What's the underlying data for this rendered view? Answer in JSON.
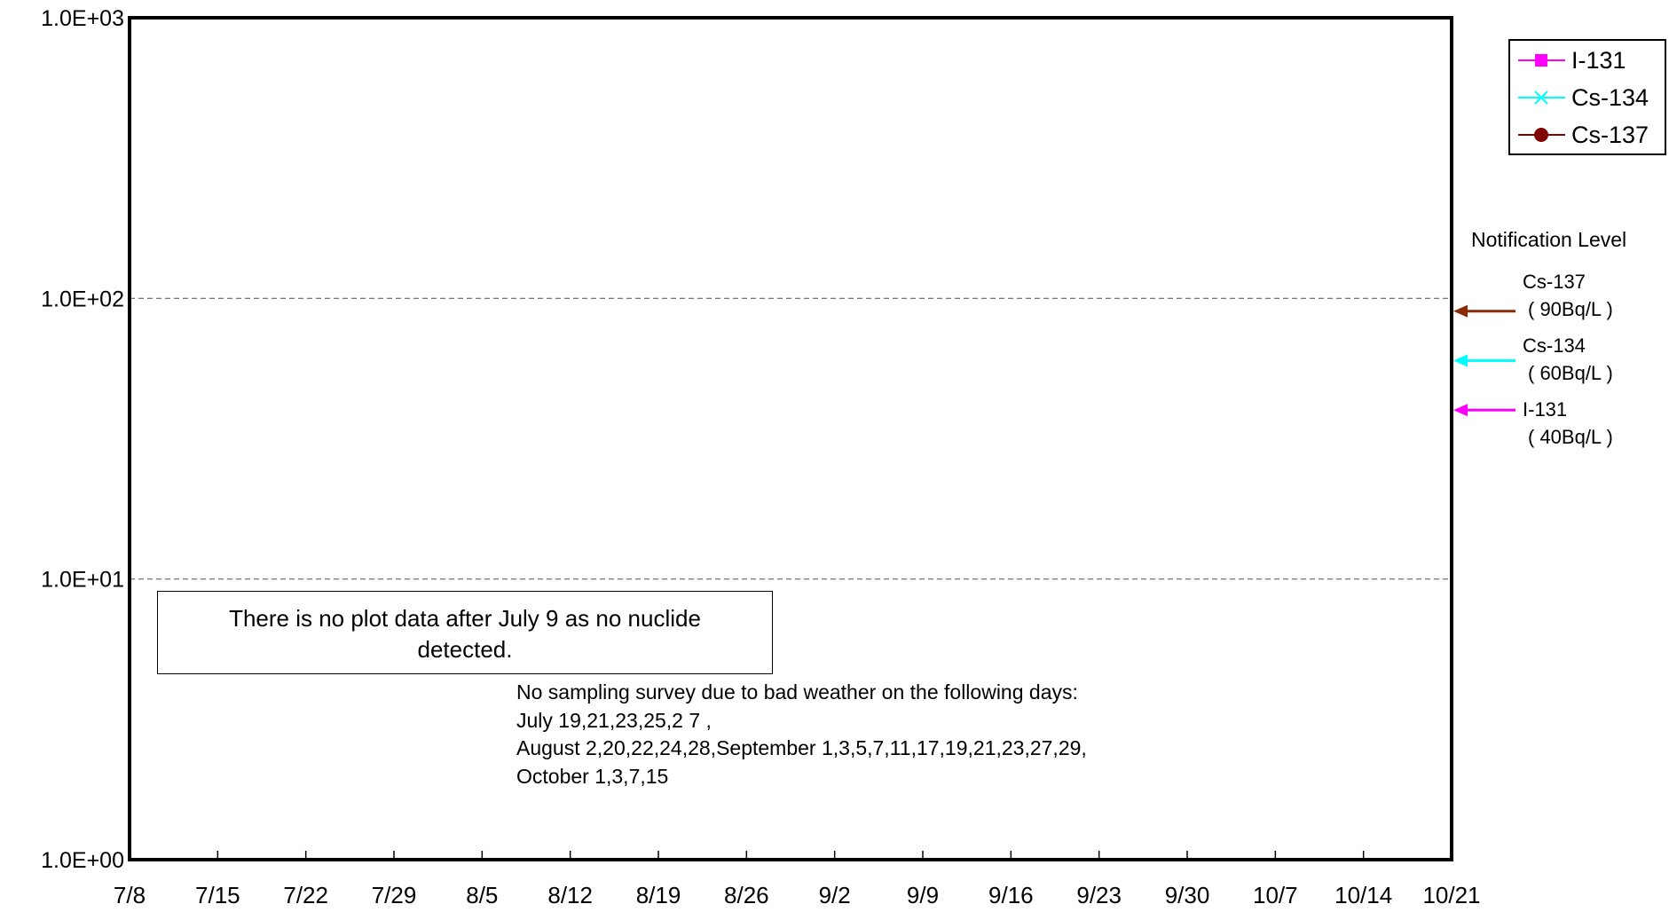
{
  "chart_data": {
    "type": "line",
    "y_scale": "log",
    "ylim": [
      1,
      1000
    ],
    "y_ticks": [
      "1.0E+00",
      "1.0E+01",
      "1.0E+02",
      "1.0E+03"
    ],
    "y_tick_values": [
      1,
      10,
      100,
      1000
    ],
    "x_ticks": [
      "7/8",
      "7/15",
      "7/22",
      "7/29",
      "8/5",
      "8/12",
      "8/19",
      "8/26",
      "9/2",
      "9/9",
      "9/16",
      "9/23",
      "9/30",
      "10/7",
      "10/14",
      "10/21"
    ],
    "grid": "dashed horizontal at 1.0E+01 and 1.0E+02",
    "legend_position": "top-right",
    "series": [
      {
        "name": "I-131",
        "color": "#ff00ff",
        "marker": "square",
        "values": []
      },
      {
        "name": "Cs-134",
        "color": "#00ffff",
        "marker": "x",
        "values": []
      },
      {
        "name": "Cs-137",
        "color": "#800000",
        "marker": "circle",
        "values": []
      }
    ],
    "notification_levels": {
      "title": "Notification Level",
      "items": [
        {
          "nuclide": "Cs-137",
          "label": "( 90Bq/L )",
          "value": 90,
          "color": "#8b2a06"
        },
        {
          "nuclide": "Cs-134",
          "label": "( 60Bq/L )",
          "value": 60,
          "color": "#00ffff"
        },
        {
          "nuclide": "I-131",
          "label": "( 40Bq/L )",
          "value": 40,
          "color": "#ff00ff"
        }
      ]
    },
    "annotations": {
      "no_data_note": [
        "There is no plot data after July 9 as no nuclide",
        "detected."
      ],
      "survey_note": [
        "No sampling survey due to bad weather on the following days:",
        "July 19,21,23,25,2 7 ,",
        "August 2,20,22,24,28,September 1,3,5,7,11,17,19,21,23,27,29,",
        "October 1,3,7,15"
      ]
    }
  }
}
